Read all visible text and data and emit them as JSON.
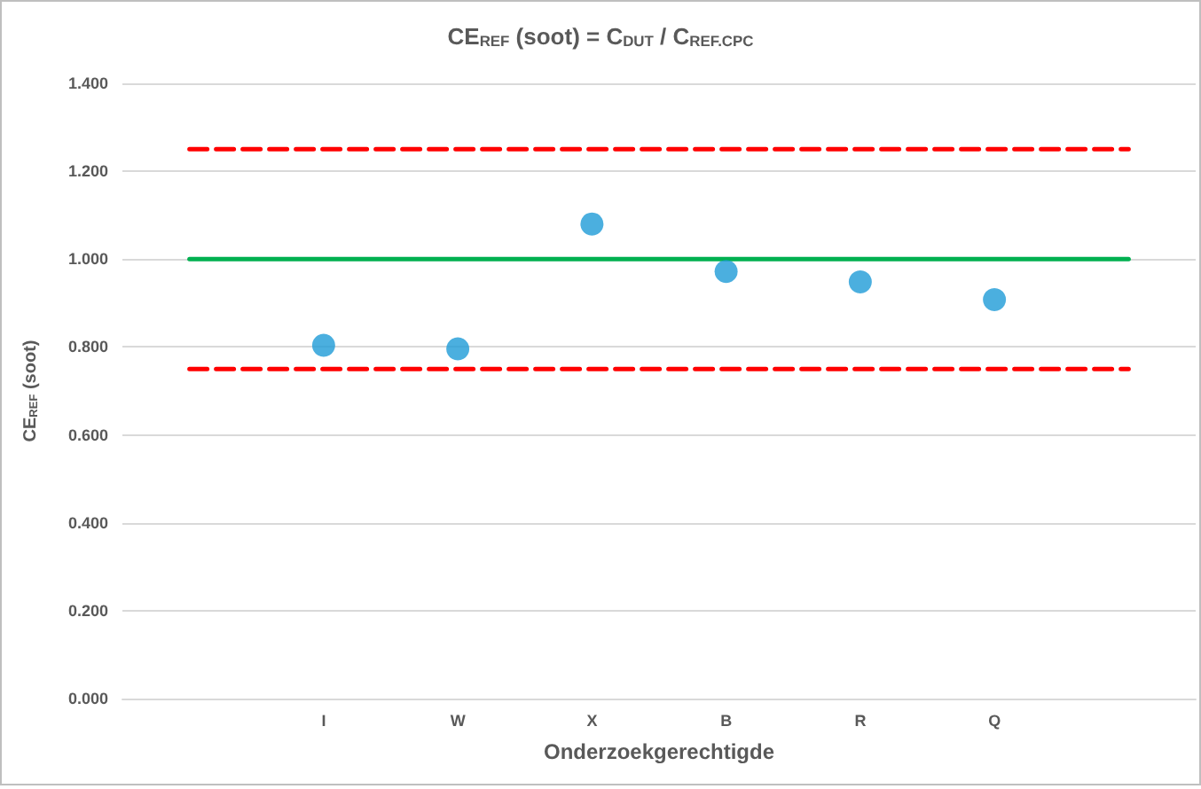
{
  "chart_data": {
    "type": "scatter",
    "title": "CE$_{REF}$ (soot) = C$_{DUT}$ / C$_{REF.CPC}$",
    "xlabel": "Onderzoekgerechtigde",
    "ylabel": "CE$_{REF}$ (soot)",
    "categories": [
      null,
      "I",
      "W",
      "X",
      "B",
      "R",
      "Q",
      null
    ],
    "series": [
      {
        "type": "line",
        "color": "#ff0000",
        "line_style": "dashed",
        "marker": "none",
        "values": [
          1.25,
          1.25,
          1.25,
          1.25,
          1.25,
          1.25,
          1.25,
          1.25
        ]
      },
      {
        "type": "line",
        "color": "#00b050",
        "line_style": "solid",
        "marker": "none",
        "values": [
          1,
          1,
          1,
          1,
          1,
          1,
          1,
          1
        ]
      },
      {
        "type": "line",
        "color": "#ff0000",
        "line_style": "dashed",
        "marker": "none",
        "values": [
          0.75,
          0.75,
          0.75,
          0.75,
          0.75,
          0.75,
          0.75,
          0.75
        ]
      },
      {
        "color": "#1e9bd7",
        "marker": "circle",
        "values": [
          null,
          0.804,
          0.796,
          1.08,
          0.972,
          0.948,
          0.908,
          null
        ]
      }
    ],
    "ylim": [
      0,
      1.4
    ],
    "yticks": [
      {
        "value": 0,
        "label": "0.000"
      },
      {
        "value": 0.2,
        "label": "0.200"
      },
      {
        "value": 0.4,
        "label": "0.400"
      },
      {
        "value": 0.6,
        "label": "0.600"
      },
      {
        "value": 0.8,
        "label": "0.800"
      },
      {
        "value": 1,
        "label": "1.000"
      },
      {
        "value": 1.2,
        "label": "1.200"
      },
      {
        "value": 1.4,
        "label": "1.400"
      }
    ],
    "grid": "y"
  }
}
